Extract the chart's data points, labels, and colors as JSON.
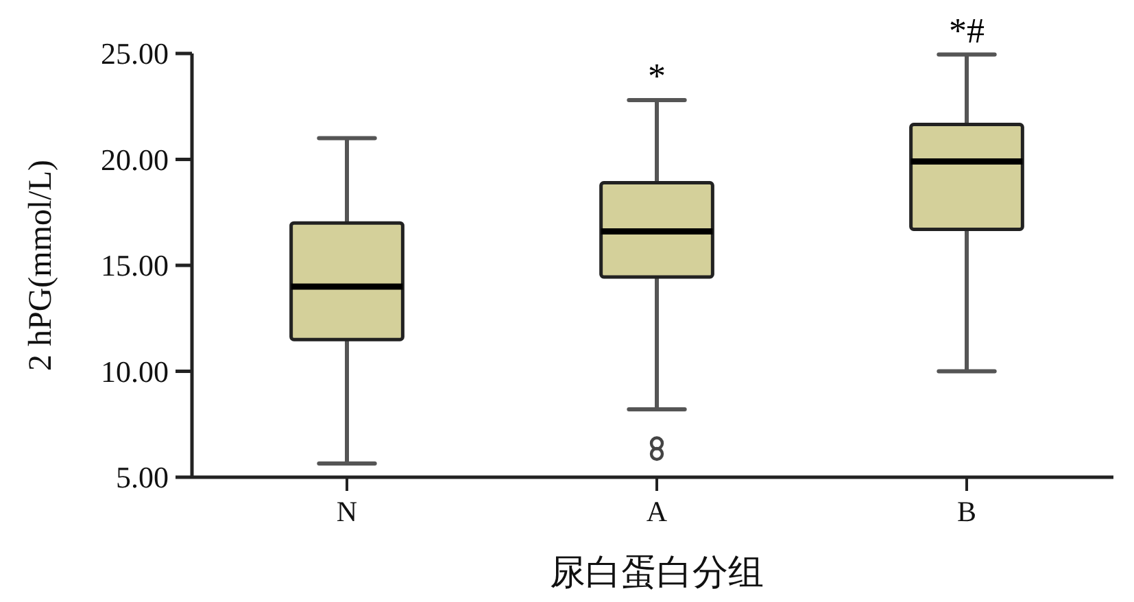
{
  "chart_data": {
    "type": "box",
    "categories": [
      "N",
      "A",
      "B"
    ],
    "series": [
      {
        "color": "#d4d09a",
        "boxes": [
          {
            "low": 5.65,
            "q1": 11.5,
            "median": 14.0,
            "q3": 17.0,
            "high": 21.0
          },
          {
            "low": 8.2,
            "q1": 14.45,
            "median": 16.6,
            "q3": 18.9,
            "high": 22.8,
            "outliers": [
              6.6,
              6.1
            ]
          },
          {
            "low": 10.0,
            "q1": 16.7,
            "median": 19.9,
            "q3": 21.65,
            "high": 24.95
          }
        ]
      }
    ],
    "xlabel": "尿白蛋白分组",
    "ylabel": "2 hPG(mmol/L)",
    "ylim": [
      5,
      25
    ],
    "yticks": [
      {
        "value": 5,
        "label": "5.00"
      },
      {
        "value": 10,
        "label": "10.00"
      },
      {
        "value": 15,
        "label": "15.00"
      },
      {
        "value": 20,
        "label": "20.00"
      },
      {
        "value": 25,
        "label": "25.00"
      }
    ],
    "annotations": [
      {
        "text": "*",
        "x": "A",
        "y": 22.8
      },
      {
        "text": "*#",
        "x": "B",
        "y": 24.95
      }
    ]
  }
}
